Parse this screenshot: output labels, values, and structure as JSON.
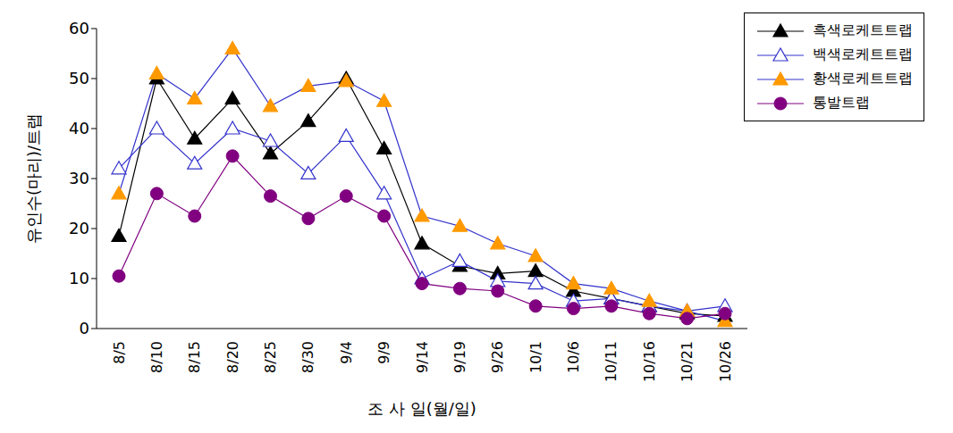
{
  "chart_data": {
    "type": "line",
    "x_label": "조    사    일(월/일)",
    "y_label": "유인수(마리)/트랩",
    "categories": [
      "8/5",
      "8/10",
      "8/15",
      "8/20",
      "8/25",
      "8/30",
      "9/4",
      "9/9",
      "9/14",
      "9/19",
      "9/26",
      "10/1",
      "10/6",
      "10/11",
      "10/16",
      "10/21",
      "10/26"
    ],
    "series": [
      {
        "name": "흑색로케트트랩",
        "color": "#000000",
        "marker": "triangle",
        "values": [
          18.5,
          50,
          38,
          46,
          35,
          41.5,
          50,
          36,
          17,
          12.5,
          11,
          11.5,
          7.5,
          6,
          4.5,
          3,
          2.5
        ]
      },
      {
        "name": "백색로케트트랩",
        "color": "#3333cc",
        "marker": "open_triangle",
        "values": [
          32,
          40,
          33,
          40,
          37.5,
          31,
          38.5,
          27,
          10,
          13.5,
          9.5,
          9,
          5.5,
          6,
          4.5,
          3.5,
          4.5
        ]
      },
      {
        "name": "황색로케트트랩",
        "color": "#ff9900",
        "marker": "triangle",
        "values": [
          27,
          51,
          46,
          56,
          44.5,
          48.5,
          49.5,
          45.5,
          22.5,
          20.5,
          17,
          14.5,
          9,
          8,
          5.5,
          3.5,
          1.5
        ]
      },
      {
        "name": "통발트랩",
        "color": "#800080",
        "marker": "circle",
        "values": [
          10.5,
          27,
          22.5,
          34.5,
          26.5,
          22,
          26.5,
          22.5,
          9,
          8,
          7.5,
          4.5,
          4,
          4.5,
          3,
          2,
          3
        ]
      }
    ],
    "ylim": [
      0,
      60
    ],
    "yticks": [
      0,
      10,
      20,
      30,
      40,
      50,
      60
    ],
    "grid": false,
    "legend": "top-right"
  }
}
